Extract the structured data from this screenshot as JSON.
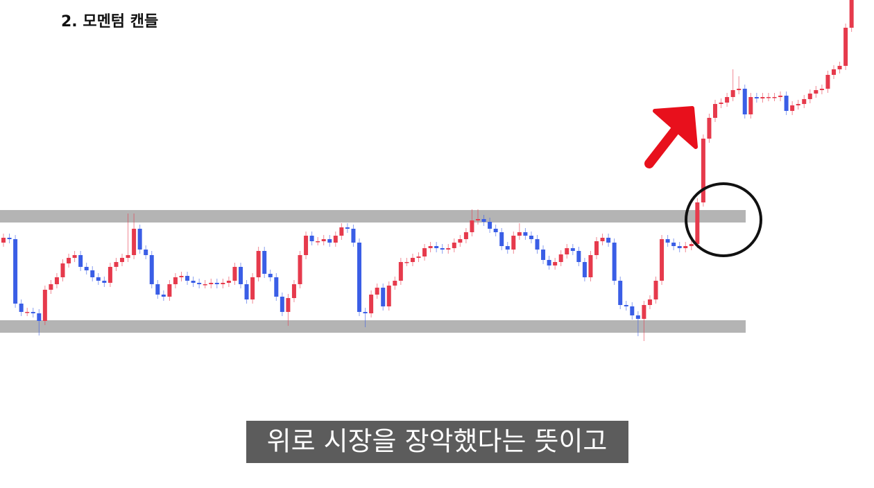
{
  "chart_data": {
    "type": "candlestick",
    "title": "2. 모멘텀 캔들",
    "caption": "위로 시장을 장악했다는 뜻이고",
    "up_color": "#e63a4c",
    "down_color": "#3a5ee6",
    "band_color": "#b4b4b4",
    "ylim": [
      0,
      700
    ],
    "hlines": [
      388,
      229
    ],
    "open": [
      350,
      357,
      355,
      262,
      250,
      250,
      248,
      237,
      282,
      290,
      300,
      320,
      328,
      332,
      315,
      310,
      300,
      295,
      292,
      315,
      322,
      328,
      332,
      370,
      340,
      332,
      290,
      275,
      272,
      290,
      300,
      302,
      295,
      292,
      290,
      290,
      292,
      290,
      292,
      295,
      315,
      290,
      268,
      300,
      338,
      305,
      300,
      272,
      250,
      270,
      290,
      332,
      360,
      352,
      352,
      355,
      350,
      360,
      372,
      370,
      350,
      250,
      248,
      275,
      285,
      258,
      288,
      295,
      322,
      322,
      328,
      330,
      342,
      345,
      342,
      340,
      342,
      350,
      355,
      365,
      382,
      384,
      380,
      370,
      365,
      345,
      340,
      360,
      365,
      360,
      355,
      340,
      325,
      317,
      322,
      333,
      342,
      338,
      322,
      300,
      332,
      352,
      357,
      350,
      295,
      260,
      258,
      245,
      240,
      260,
      268,
      295,
      355,
      350,
      345,
      342,
      345,
      348,
      408,
      500,
      530,
      550,
      552,
      560,
      570,
      572,
      535,
      560,
      558,
      560,
      560,
      560,
      562,
      540,
      548,
      550,
      557,
      565,
      570,
      572,
      592,
      600,
      605,
      660
    ],
    "high": [
      363,
      363,
      361,
      268,
      256,
      256,
      254,
      288,
      296,
      306,
      326,
      334,
      338,
      338,
      321,
      316,
      306,
      301,
      321,
      328,
      334,
      392,
      392,
      376,
      346,
      338,
      296,
      281,
      296,
      306,
      308,
      308,
      301,
      298,
      296,
      298,
      298,
      298,
      301,
      321,
      321,
      296,
      306,
      344,
      344,
      311,
      306,
      278,
      276,
      296,
      338,
      366,
      366,
      358,
      361,
      361,
      366,
      378,
      378,
      376,
      356,
      256,
      281,
      291,
      291,
      294,
      301,
      328,
      328,
      334,
      336,
      348,
      351,
      351,
      348,
      348,
      356,
      361,
      371,
      398,
      398,
      390,
      386,
      376,
      371,
      351,
      366,
      378,
      371,
      366,
      361,
      346,
      331,
      328,
      339,
      348,
      348,
      344,
      328,
      338,
      358,
      363,
      363,
      356,
      301,
      266,
      264,
      251,
      266,
      274,
      301,
      361,
      361,
      356,
      351,
      351,
      354,
      414,
      506,
      536,
      556,
      558,
      566,
      600,
      590,
      578,
      566,
      566,
      566,
      566,
      566,
      568,
      568,
      554,
      556,
      563,
      571,
      576,
      578,
      598,
      606,
      611,
      666,
      700
    ],
    "low": [
      344,
      349,
      256,
      244,
      244,
      242,
      216,
      231,
      276,
      284,
      294,
      314,
      322,
      309,
      304,
      294,
      289,
      286,
      286,
      309,
      316,
      322,
      326,
      334,
      326,
      284,
      269,
      266,
      266,
      284,
      294,
      289,
      286,
      284,
      284,
      284,
      284,
      284,
      286,
      289,
      284,
      262,
      262,
      294,
      299,
      294,
      266,
      244,
      230,
      264,
      284,
      326,
      346,
      346,
      346,
      344,
      344,
      354,
      364,
      344,
      244,
      228,
      242,
      269,
      252,
      252,
      282,
      289,
      316,
      316,
      322,
      324,
      336,
      336,
      334,
      334,
      336,
      344,
      349,
      359,
      376,
      374,
      364,
      359,
      339,
      334,
      334,
      354,
      354,
      349,
      334,
      319,
      311,
      311,
      316,
      327,
      332,
      316,
      294,
      294,
      326,
      346,
      344,
      289,
      254,
      252,
      239,
      215,
      208,
      254,
      262,
      289,
      344,
      339,
      336,
      336,
      339,
      342,
      402,
      494,
      524,
      544,
      546,
      554,
      564,
      529,
      529,
      552,
      552,
      554,
      554,
      554,
      534,
      534,
      542,
      544,
      551,
      559,
      564,
      566,
      586,
      594,
      599,
      654
    ],
    "close": [
      357,
      355,
      262,
      250,
      250,
      248,
      237,
      282,
      290,
      300,
      320,
      328,
      332,
      315,
      310,
      300,
      295,
      292,
      315,
      322,
      328,
      332,
      370,
      340,
      332,
      290,
      275,
      272,
      290,
      300,
      302,
      295,
      292,
      290,
      290,
      292,
      290,
      292,
      295,
      315,
      290,
      268,
      300,
      338,
      305,
      300,
      272,
      250,
      270,
      290,
      332,
      360,
      352,
      352,
      355,
      350,
      360,
      372,
      370,
      350,
      250,
      248,
      275,
      285,
      258,
      288,
      295,
      322,
      322,
      328,
      330,
      342,
      345,
      342,
      340,
      342,
      350,
      355,
      365,
      382,
      384,
      380,
      370,
      365,
      345,
      340,
      360,
      365,
      360,
      355,
      340,
      325,
      317,
      322,
      333,
      342,
      338,
      322,
      300,
      332,
      352,
      357,
      350,
      295,
      260,
      258,
      245,
      240,
      260,
      268,
      295,
      355,
      350,
      345,
      342,
      345,
      348,
      408,
      500,
      530,
      550,
      552,
      560,
      570,
      572,
      535,
      560,
      558,
      560,
      560,
      560,
      562,
      540,
      548,
      550,
      557,
      565,
      570,
      572,
      592,
      600,
      605,
      660,
      700
    ]
  }
}
